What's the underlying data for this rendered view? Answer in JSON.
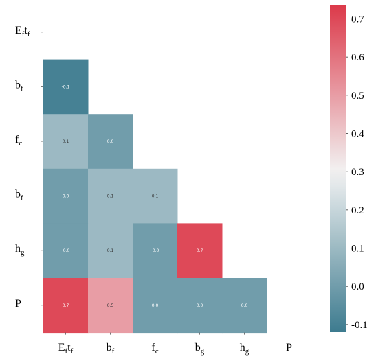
{
  "chart_data": {
    "type": "heatmap",
    "row_labels": [
      {
        "base": "E",
        "sub": "f",
        "base2": "t",
        "sub2": "f"
      },
      {
        "base": "b",
        "sub": "f"
      },
      {
        "base": "f",
        "sub": "c"
      },
      {
        "base": "b",
        "sub": "f"
      },
      {
        "base": "h",
        "sub": "g"
      },
      {
        "base": "P",
        "sub": ""
      }
    ],
    "col_labels": [
      {
        "base": "E",
        "sub": "f",
        "base2": "t",
        "sub2": "f"
      },
      {
        "base": "b",
        "sub": "f"
      },
      {
        "base": "f",
        "sub": "c"
      },
      {
        "base": "b",
        "sub": "g"
      },
      {
        "base": "h",
        "sub": "g"
      },
      {
        "base": "P",
        "sub": ""
      }
    ],
    "matrix": [
      [
        null,
        null,
        null,
        null,
        null,
        null
      ],
      [
        -0.1,
        null,
        null,
        null,
        null,
        null
      ],
      [
        0.1,
        0.0,
        null,
        null,
        null,
        null
      ],
      [
        0.0,
        0.1,
        0.1,
        null,
        null,
        null
      ],
      [
        -0.0,
        0.1,
        -0.0,
        0.7,
        null,
        null
      ],
      [
        0.7,
        0.5,
        0.0,
        0.0,
        0.0,
        null
      ]
    ],
    "display_labels": [
      [
        null,
        null,
        null,
        null,
        null,
        null
      ],
      [
        "-0.1",
        null,
        null,
        null,
        null,
        null
      ],
      [
        "0.1",
        "0.0",
        null,
        null,
        null,
        null
      ],
      [
        "0.0",
        "0.1",
        "0.1",
        null,
        null,
        null
      ],
      [
        "-0.0",
        "0.1",
        "-0.0",
        "0.7",
        null,
        null
      ],
      [
        "0.7",
        "0.5",
        "0.0",
        "0.0",
        "0.0",
        null
      ]
    ],
    "colorbar": {
      "range": [
        -0.12,
        0.735
      ],
      "ticks": [
        -0.1,
        0.0,
        0.1,
        0.2,
        0.3,
        0.4,
        0.5,
        0.6,
        0.7
      ],
      "tick_labels": [
        "-0.1",
        "0.0",
        "0.1",
        "0.2",
        "0.3",
        "0.4",
        "0.5",
        "0.6",
        "0.7"
      ],
      "low_color": "#3d7b8f",
      "mid_color": "#f2f2f2",
      "high_color": "#dc3a4a"
    }
  }
}
